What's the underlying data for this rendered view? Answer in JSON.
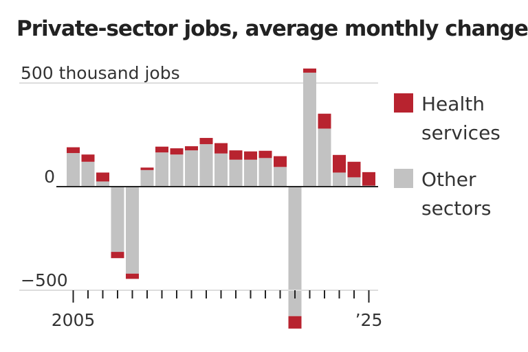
{
  "chart_data": {
    "type": "bar",
    "stacked": true,
    "title": "Private-sector jobs, average monthly change",
    "unit_label": "500 thousand jobs",
    "ylim": [
      -700,
      560
    ],
    "y_ticks": [
      {
        "value": 500,
        "label": "500 thousand jobs"
      },
      {
        "value": 0,
        "label": "0"
      },
      {
        "value": -500,
        "label": "−500"
      }
    ],
    "x_labels": [
      {
        "year": 2005,
        "label": "2005"
      },
      {
        "year": 2025,
        "label": "’25"
      }
    ],
    "categories": [
      2005,
      2006,
      2007,
      2008,
      2009,
      2010,
      2011,
      2012,
      2013,
      2014,
      2015,
      2016,
      2017,
      2018,
      2019,
      2020,
      2021,
      2022,
      2023,
      2024,
      2025
    ],
    "series": [
      {
        "name": "Other sectors",
        "color": "#c2c2c2",
        "values": [
          162,
          120,
          25,
          -345,
          -445,
          80,
          165,
          155,
          175,
          205,
          160,
          130,
          130,
          138,
          95,
          -625,
          550,
          280,
          68,
          45,
          5
        ]
      },
      {
        "name": "Health services",
        "color": "#b8232f",
        "values": [
          28,
          35,
          43,
          30,
          25,
          12,
          28,
          30,
          20,
          30,
          50,
          45,
          40,
          35,
          52,
          -60,
          20,
          72,
          85,
          75,
          65
        ]
      }
    ],
    "legend": {
      "position": "right",
      "items": [
        {
          "name": "Health services",
          "lines": [
            "Health",
            "services"
          ],
          "color": "#b8232f"
        },
        {
          "name": "Other sectors",
          "lines": [
            "Other",
            "sectors"
          ],
          "color": "#c2c2c2"
        }
      ]
    }
  }
}
